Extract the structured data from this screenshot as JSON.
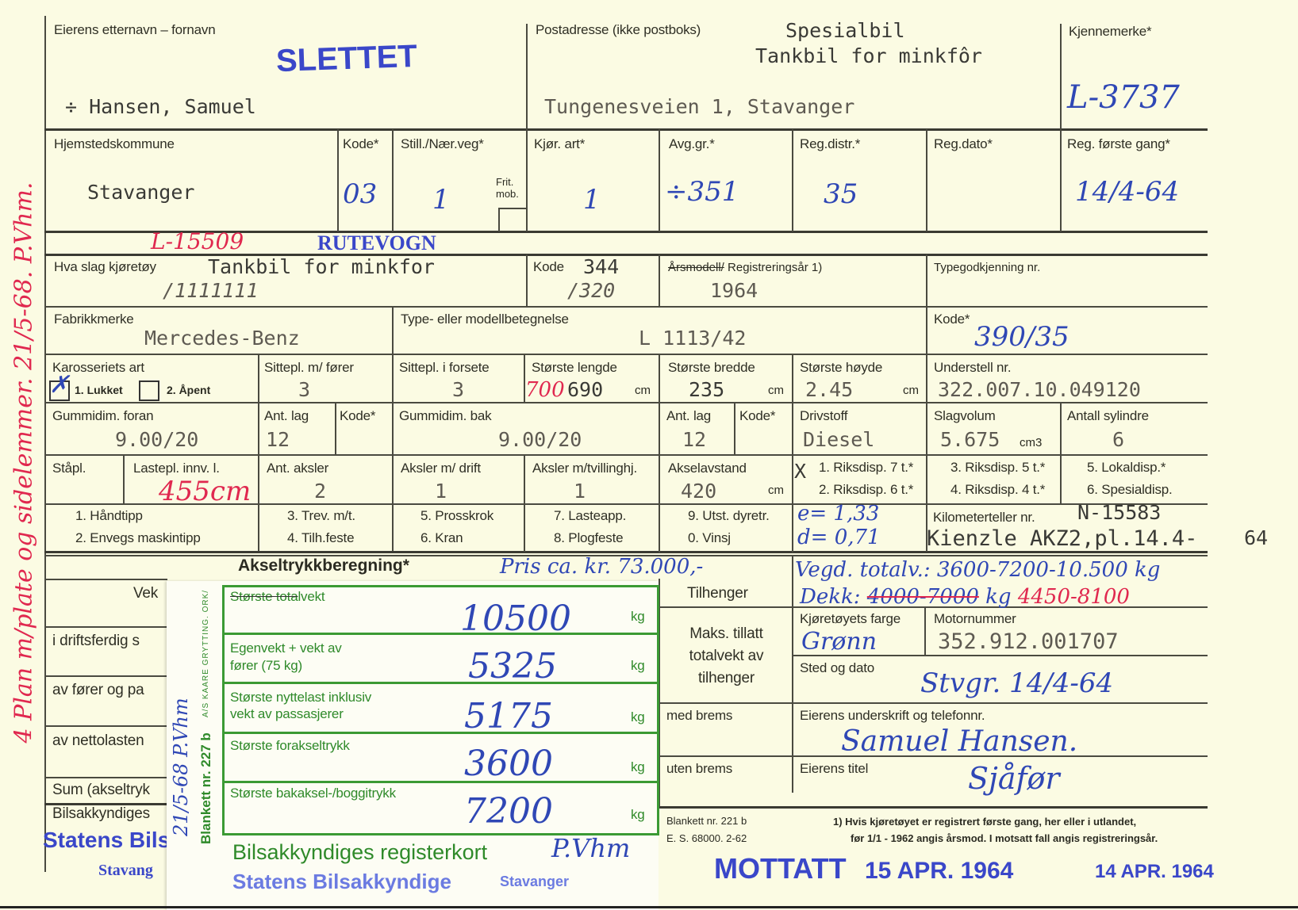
{
  "owner": {
    "label": "Eierens etternavn – fornavn",
    "stamp": "SLETTET",
    "value": "÷ Hansen, Samuel"
  },
  "address": {
    "label": "Postadresse (ikke postboks)",
    "note1": "Spesialbil",
    "note2": "Tankbil for minkfôr",
    "value": "Tungenesveien 1, Stavanger"
  },
  "plate": {
    "label": "Kjennemerke*",
    "value": "L-3737"
  },
  "row2": {
    "municipality_label": "Hjemstedskommune",
    "municipality": "Stavanger",
    "code_label": "Kode*",
    "code": "03",
    "road_label": "Still./Nær.veg*",
    "road": "1",
    "frit_label": "Frit. mob.",
    "drive_label": "Kjør. art*",
    "drive": "1",
    "tax_label": "Avg.gr.*",
    "tax": "÷351",
    "district_label": "Reg.distr.*",
    "district": "35",
    "regdate_label": "Reg.dato*",
    "first_label": "Reg. første gang*",
    "first": "14/4-64"
  },
  "annotations": {
    "plate_old": "L-15509",
    "rutevogn": "RUTEVOGN",
    "margin_note": "4 Plan m/plate og sidelemmer. 21/5-68. P.Vhm."
  },
  "vehicle": {
    "kind_label": "Hva slag kjøretøy",
    "kind": "Tankbil for minkfor",
    "kind_struck": "/1111111",
    "code_label": "Kode",
    "code": "344",
    "code_struck": "/320",
    "year_label_struck": "Årsmodell/",
    "year_label": " Registreringsår 1)",
    "year": "1964",
    "typeapproval_label": "Typegodkjenning nr.",
    "make_label": "Fabrikkmerke",
    "make": "Mercedes-Benz",
    "model_label": "Type- eller modellbetegnelse",
    "model": "L 1113/42",
    "model_code_label": "Kode*",
    "model_code": "390/35"
  },
  "body": {
    "label": "Karosseriets art",
    "opt1": "1. Lukket",
    "opt1_checked": true,
    "opt2": "2. Åpent",
    "seats_label": "Sittepl. m/ fører",
    "seats": "3",
    "front_seats_label": "Sittepl. i forsete",
    "front_seats": "3",
    "length_label": "Største lengde",
    "length_struck": "700",
    "length": "690",
    "unit_cm": "cm",
    "width_label": "Største bredde",
    "width": "235",
    "height_label": "Største høyde",
    "height": "2.45",
    "chassis_label": "Understell nr.",
    "chassis": "322.007.10.049120"
  },
  "tires": {
    "front_label": "Gummidim. foran",
    "front": "9.00/20",
    "plies_label": "Ant. lag",
    "front_plies": "12",
    "code_label": "Kode*",
    "rear_label": "Gummidim. bak",
    "rear": "9.00/20",
    "rear_plies": "12",
    "fuel_label": "Drivstoff",
    "fuel": "Diesel",
    "displacement_label": "Slagvolum",
    "displacement": "5.675",
    "displacement_unit": "cm3",
    "cylinders_label": "Antall sylindre",
    "cylinders": "6"
  },
  "axles": {
    "standing_label": "Ståpl.",
    "cargo_label": "Lastepl. innv. l.",
    "cargo": "455cm",
    "count_label": "Ant. aksler",
    "count": "2",
    "driven_label": "Aksler m/ drift",
    "driven": "1",
    "twin_label": "Aksler m/tvillinghj.",
    "twin": "1",
    "wheelbase_label": "Akselavstand",
    "wheelbase": "420",
    "disp_mark": "X",
    "disp": [
      "1. Riksdisp. 7 t.*",
      "2. Riksdisp. 6 t.*",
      "3. Riksdisp. 5 t.*",
      "4. Riksdisp. 4 t.*",
      "5. Lokaldisp.*",
      "6. Spesialdisp."
    ]
  },
  "equipment": [
    "1. Håndtipp",
    "2. Envegs maskintipp",
    "3. Trev. m/t.",
    "4. Tilh.feste",
    "5. Prosskrok",
    "6. Kran",
    "7. Lasteapp.",
    "8. Plogfeste",
    "9. Utst. dyretr.",
    "0. Vinsj"
  ],
  "handwritten_ratios": [
    "e= 1,33",
    "d= 0,71"
  ],
  "odometer": {
    "label": "Kilometerteller nr.",
    "value": "N-15583",
    "detail": "Kienzle AKZ2,pl.14.4-",
    "detail2": "64"
  },
  "axle_calc": {
    "title": "Akseltrykkberegning*",
    "price": "Pris ca. kr. 73.000,-",
    "weighed": "Vegd. totalv.: 3600-7200-10.500 kg",
    "tyres_prefix": "Dekk:",
    "tyres_struck": "4000-7000",
    "tyres_kg": "kg",
    "tyres_new": "4450-8100",
    "left_rows": [
      "Vek",
      "i driftsferdig s",
      "av fører og pa",
      "av nettolasten",
      "Sum (akseltryk",
      "Bilsakkyndiges"
    ],
    "left_stamp": "Statens Bilsak",
    "left_stamp2": "Stavang"
  },
  "green_card": {
    "rows": [
      {
        "label_struck": "Største tota",
        "label": "lvekt",
        "value": "10500",
        "unit": "kg"
      },
      {
        "label": "Egenvekt + vekt av",
        "label2": "fører (75 kg)",
        "value": "5325",
        "unit": "kg"
      },
      {
        "label": "Største nyttelast inklusiv",
        "label2": "vekt av passasjerer",
        "value": "5175",
        "unit": "kg"
      },
      {
        "label": "Største forakseltrykk",
        "value": "3600",
        "unit": "kg"
      },
      {
        "label": "Største bakaksel-/boggitrykk",
        "value": "7200",
        "unit": "kg"
      }
    ],
    "form_no": "Blankett nr. 227 b",
    "printer": "A/S KAARE GRYTTING. ORK/",
    "title": "Bilsakkyndiges registerkort",
    "stamp": "Statens Bilsakkyndige",
    "stamp2": "Stavanger",
    "handwritten_date": "21/5-68 P.Vhm",
    "signature": "P.Vhm"
  },
  "trailer": {
    "label": "Tilhenger",
    "max_label": "Maks. tillatt totalvekt av tilhenger",
    "with_brake": "med brems",
    "without_brake": "uten brems"
  },
  "owner_info": {
    "color_label": "Kjøretøyets farge",
    "color": "Grønn",
    "engine_label": "Motornummer",
    "engine": "352.912.001707",
    "place_label": "Sted og dato",
    "place": "Stvgr. 14/4-64",
    "signature_label": "Eierens underskrift og telefonnr.",
    "signature": "Samuel Hansen.",
    "title_label": "Eierens titel",
    "title": "Sjåfør"
  },
  "footer": {
    "form_no": "Blankett nr. 221 b",
    "edition": "E. S. 68000. 2-62",
    "footnote1": "1)  Hvis kjøretøyet er registrert første gang, her eller i utlandet,",
    "footnote2": "før 1/1 - 1962 angis årsmod.  I motsatt fall angis registreringsår.",
    "stamp_received": "MOTTATT",
    "stamp_date1": "15 APR. 1964",
    "stamp_date2": "14 APR. 1964"
  }
}
